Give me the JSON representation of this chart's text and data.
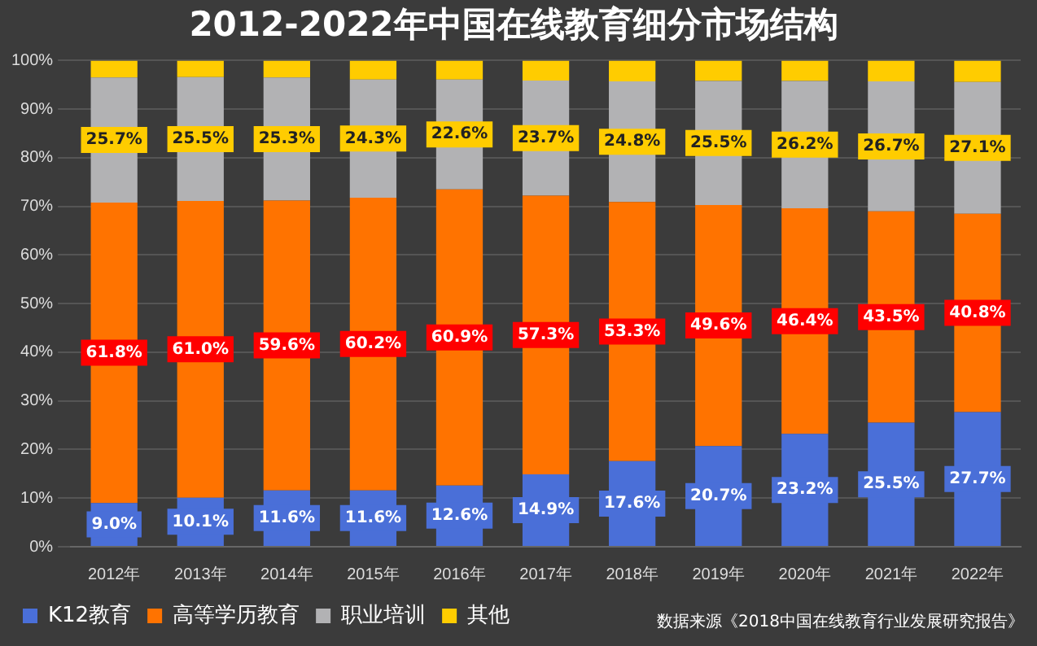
{
  "chart_data": {
    "type": "bar",
    "stacked": true,
    "title": "2012-2022年中国在线教育细分市场结构",
    "categories": [
      "2012年",
      "2013年",
      "2014年",
      "2015年",
      "2016年",
      "2017年",
      "2018年",
      "2019年",
      "2020年",
      "2021年",
      "2022年"
    ],
    "series": [
      {
        "name": "K12教育",
        "color": "#4a6fd8",
        "values": [
          9.0,
          10.1,
          11.6,
          11.6,
          12.6,
          14.9,
          17.6,
          20.7,
          23.2,
          25.5,
          27.7
        ],
        "value_labels": [
          "9.0%",
          "10.1%",
          "11.6%",
          "11.6%",
          "12.6%",
          "14.9%",
          "17.6%",
          "20.7%",
          "23.2%",
          "25.5%",
          "27.7%"
        ]
      },
      {
        "name": "高等学历教育",
        "color": "#ff7300",
        "values": [
          61.8,
          61.0,
          59.6,
          60.2,
          60.9,
          57.3,
          53.3,
          49.6,
          46.4,
          43.5,
          40.8
        ],
        "value_labels": [
          "61.8%",
          "61.0%",
          "59.6%",
          "60.2%",
          "60.9%",
          "57.3%",
          "53.3%",
          "49.6%",
          "46.4%",
          "43.5%",
          "40.8%"
        ]
      },
      {
        "name": "职业培训",
        "color": "#b2b2b4",
        "values": [
          25.7,
          25.5,
          25.3,
          24.3,
          22.6,
          23.7,
          24.8,
          25.5,
          26.2,
          26.7,
          27.1
        ],
        "value_labels": [
          "25.7%",
          "25.5%",
          "25.3%",
          "24.3%",
          "22.6%",
          "23.7%",
          "24.8%",
          "25.5%",
          "26.2%",
          "26.7%",
          "27.1%"
        ]
      },
      {
        "name": "其他",
        "color": "#ffcc00",
        "values": [
          3.5,
          3.4,
          3.5,
          3.9,
          3.9,
          4.1,
          4.3,
          4.2,
          4.2,
          4.3,
          4.4
        ]
      }
    ],
    "ylim": [
      0,
      100
    ],
    "yticks": [
      {
        "value": 0,
        "label": "0%"
      },
      {
        "value": 10,
        "label": "10%"
      },
      {
        "value": 20,
        "label": "20%"
      },
      {
        "value": 30,
        "label": "30%"
      },
      {
        "value": 40,
        "label": "40%"
      },
      {
        "value": 50,
        "label": "50%"
      },
      {
        "value": 60,
        "label": "60%"
      },
      {
        "value": 70,
        "label": "70%"
      },
      {
        "value": 80,
        "label": "80%"
      },
      {
        "value": 90,
        "label": "90%"
      },
      {
        "value": 100,
        "label": "100%"
      }
    ],
    "grid": "y",
    "legend": "bottom",
    "annotations": [
      "数据来源《2018中国在线教育行业发展研究报告》"
    ]
  }
}
